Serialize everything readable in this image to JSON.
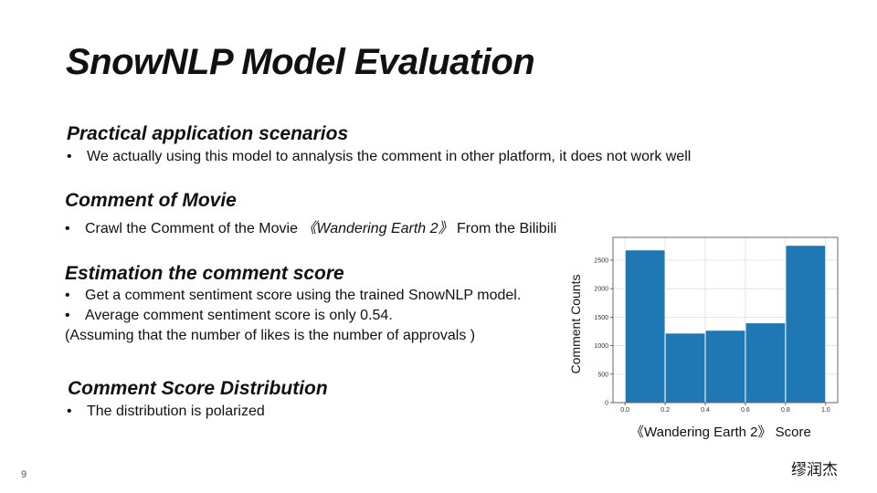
{
  "slide": {
    "title": "SnowNLP Model Evaluation",
    "page_number": "9",
    "author": "缪润杰"
  },
  "sections": {
    "practical": {
      "heading": "Practical application scenarios",
      "bullet1": "We actually using this model to annalysis the comment in other platform, it does not work well"
    },
    "movie": {
      "heading": "Comment of Movie",
      "bullet_prefix": "Crawl the Comment of the Movie ",
      "bullet_title": "《Wandering Earth 2》",
      "bullet_suffix": "From  the Bilibili"
    },
    "estimation": {
      "heading": "Estimation the comment score",
      "bullet1": "Get a comment sentiment score using the trained SnowNLP model.",
      "bullet2": "Average comment sentiment score is only 0.54.",
      "note": "(Assuming that the number of likes is the number of approvals )"
    },
    "distribution": {
      "heading": "Comment Score Distribution",
      "bullet1": "The distribution is polarized"
    }
  },
  "chart_data": {
    "type": "bar",
    "subtype": "histogram",
    "bin_edges": [
      0.0,
      0.2,
      0.4,
      0.6,
      0.8,
      1.0
    ],
    "values": [
      2680,
      1220,
      1270,
      1400,
      2760
    ],
    "xticks": [
      "0.0",
      "0.2",
      "0.4",
      "0.6",
      "0.8",
      "1.0"
    ],
    "yticks": [
      "0",
      "500",
      "1000",
      "1500",
      "2000",
      "2500"
    ],
    "xlim": [
      -0.06,
      1.06
    ],
    "ylim": [
      0,
      2900
    ],
    "xlabel": "《Wandering Earth 2》 Score",
    "ylabel": "Comment Counts",
    "grid": true,
    "bar_color": "#1f77b4"
  }
}
